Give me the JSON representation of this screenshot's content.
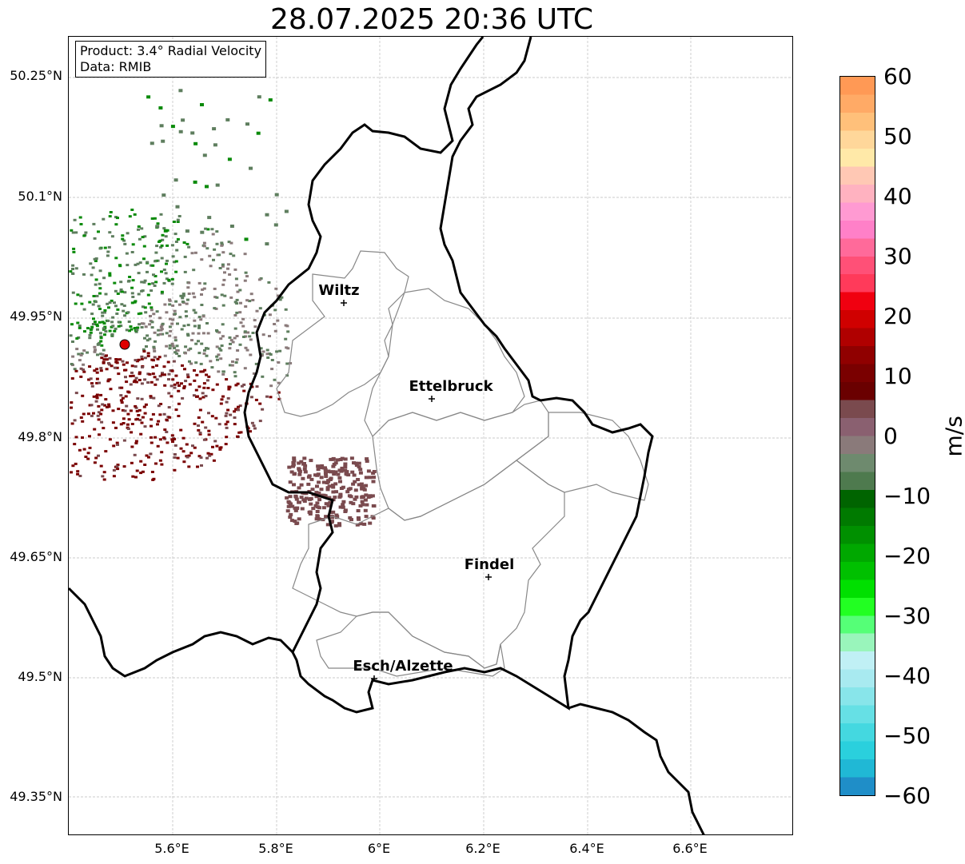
{
  "title": "28.07.2025 20:36 UTC",
  "info": {
    "product": "Product: 3.4° Radial Velocity",
    "data": "Data: RMIB"
  },
  "axes": {
    "lat_labels": [
      "50.25°N",
      "50.1°N",
      "49.95°N",
      "49.8°N",
      "49.65°N",
      "49.5°N",
      "49.35°N"
    ],
    "lon_labels": [
      "5.6°E",
      "5.8°E",
      "6°E",
      "6.2°E",
      "6.4°E",
      "6.6°E"
    ],
    "grid": true
  },
  "cities": [
    {
      "name": "Wiltz"
    },
    {
      "name": "Ettelbruck"
    },
    {
      "name": "Findel"
    },
    {
      "name": "Esch/Alzette"
    }
  ],
  "colorbar": {
    "label": "m/s",
    "ticks": [
      "60",
      "50",
      "40",
      "30",
      "20",
      "10",
      "0",
      "−10",
      "−20",
      "−30",
      "−40",
      "−50",
      "−60"
    ],
    "range": [
      -60,
      60
    ]
  },
  "colors": {
    "outgoing_dark": "#7a0000",
    "outgoing_muted": "#7a4a4e",
    "near_zero_gray": "#8a7a7a",
    "incoming_green": "#0a8a0a",
    "incoming_muted": "#5e7e5e",
    "radar_site": "#e00000"
  }
}
